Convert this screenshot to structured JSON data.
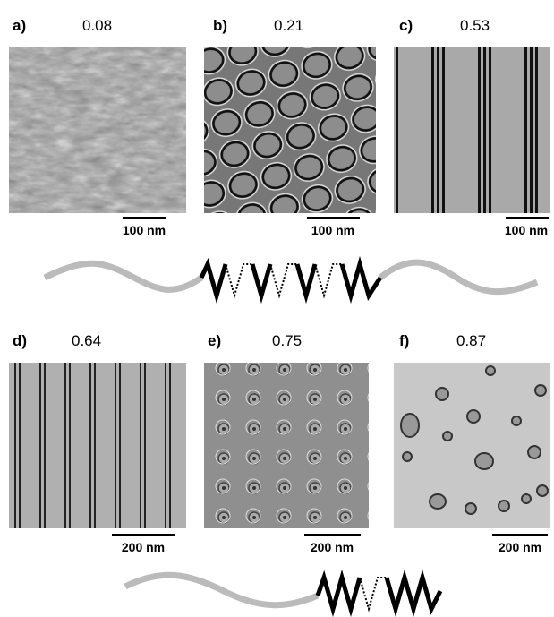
{
  "panels": [
    {
      "label": "a)",
      "value": "0.08",
      "scale_bar": "100 nm"
    },
    {
      "label": "b)",
      "value": "0.21",
      "scale_bar": "100 nm"
    },
    {
      "label": "c)",
      "value": "0.53",
      "scale_bar": "100 nm"
    },
    {
      "label": "d)",
      "value": "0.64",
      "scale_bar": "200 nm"
    },
    {
      "label": "e)",
      "value": "0.75",
      "scale_bar": "200 nm"
    },
    {
      "label": "f)",
      "value": "0.87",
      "scale_bar": "200 nm"
    }
  ]
}
